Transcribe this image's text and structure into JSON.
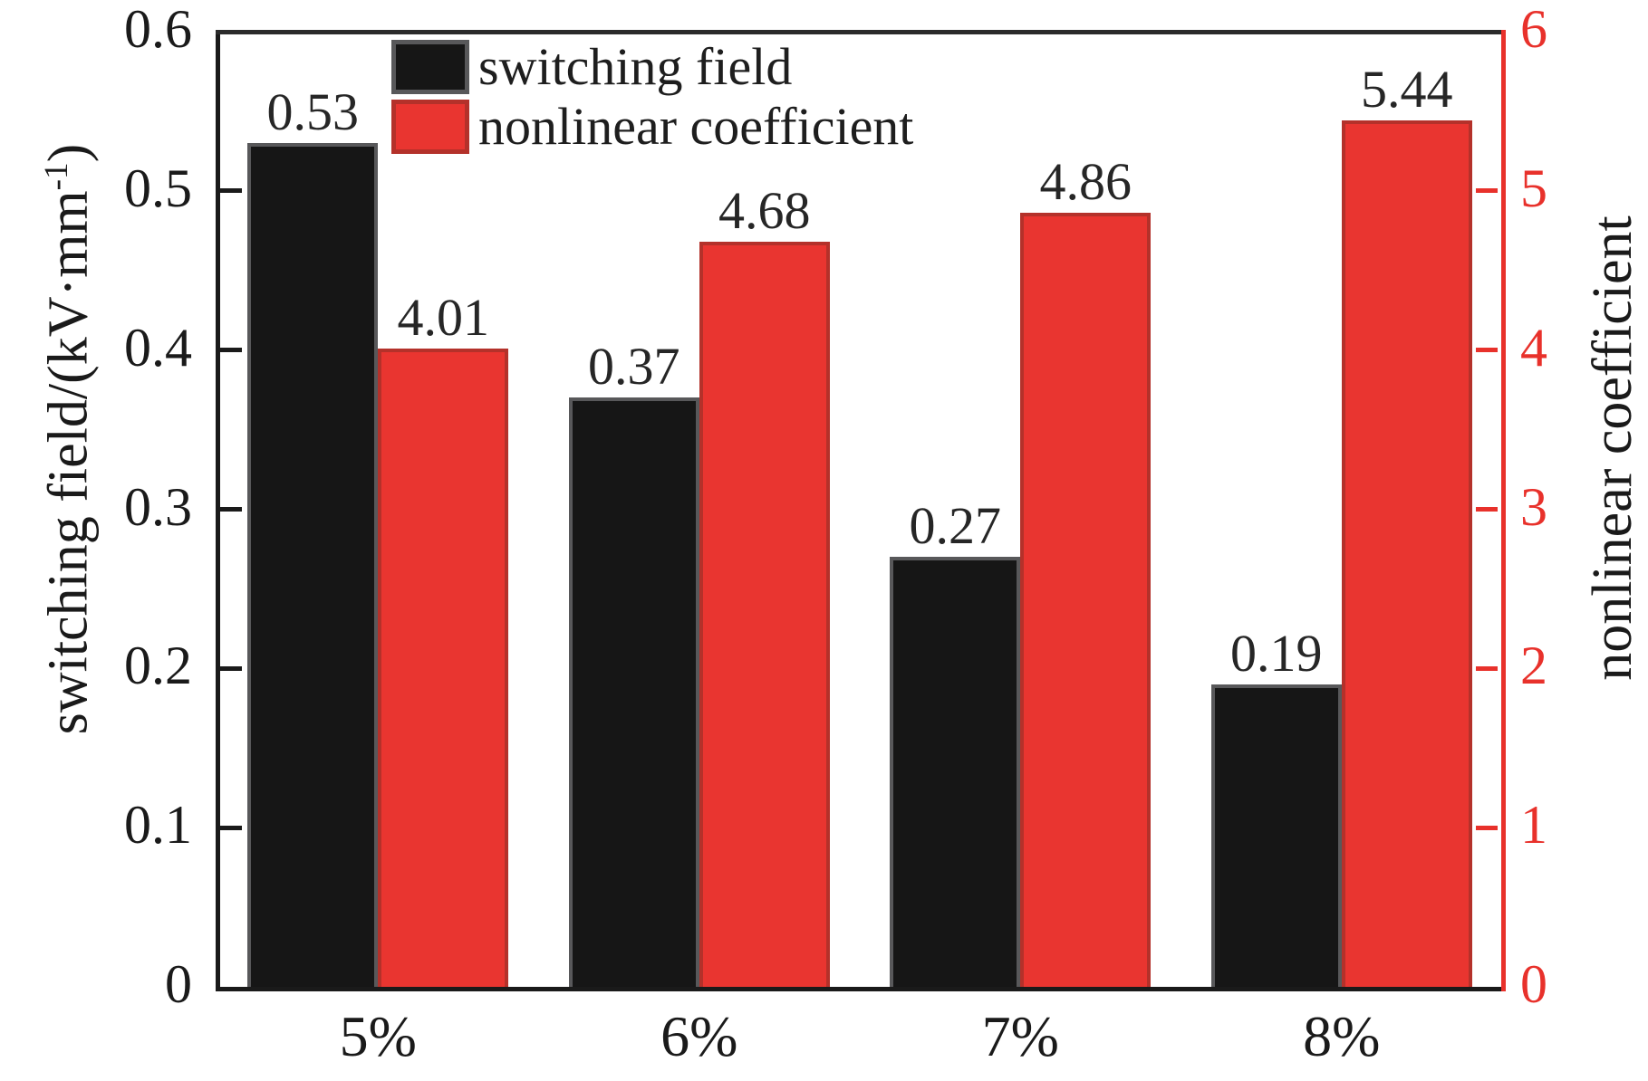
{
  "figure": {
    "legend": [
      {
        "label": "switching field",
        "color": "#161616",
        "border": "#58585a"
      },
      {
        "label": "nonlinear coefficient",
        "color": "#e93530",
        "border": "#b4312a"
      }
    ],
    "left_axis": {
      "title_main": "switching field/(kV·mm",
      "title_sup": "-1",
      "title_end": ")",
      "ticks": [
        "0",
        "0.1",
        "0.2",
        "0.3",
        "0.4",
        "0.5",
        "0.6"
      ],
      "max": 0.6,
      "color": "#1a1a1a"
    },
    "right_axis": {
      "title": "nonlinear coefficient",
      "ticks": [
        "0",
        "1",
        "2",
        "3",
        "4",
        "5",
        "6"
      ],
      "max": 6,
      "color": "#e8312b"
    },
    "x_axis": {
      "categories": [
        "5%",
        "6%",
        "7%",
        "8%"
      ]
    }
  },
  "chart_data": {
    "type": "bar",
    "categories": [
      "5%",
      "6%",
      "7%",
      "8%"
    ],
    "series": [
      {
        "name": "switching field",
        "axis": "left",
        "values": [
          0.53,
          0.37,
          0.27,
          0.19
        ],
        "color": "#161616",
        "border": "#58585a"
      },
      {
        "name": "nonlinear coefficient",
        "axis": "right",
        "values": [
          4.01,
          4.68,
          4.86,
          5.44
        ],
        "color": "#e93530",
        "border": "#b4312a"
      }
    ],
    "title": "",
    "xlabel": "",
    "ylabel_left": "switching field/(kV·mm⁻¹)",
    "ylabel_right": "nonlinear coefficient",
    "ylim_left": [
      0,
      0.6
    ],
    "ylim_right": [
      0,
      6
    ],
    "grid": false,
    "legend_position": "upper-left-inside",
    "value_labels": true
  }
}
